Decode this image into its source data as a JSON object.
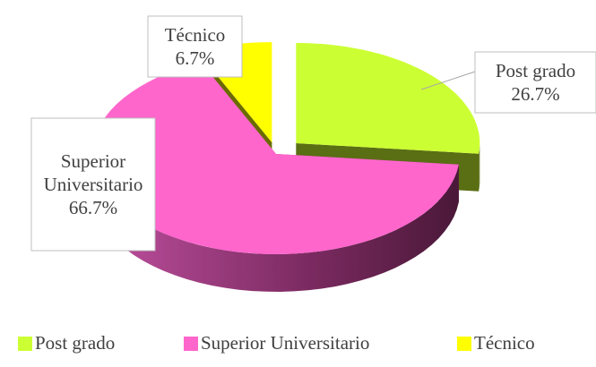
{
  "chart_data": {
    "type": "pie",
    "categories": [
      "Post grado",
      "Superior Universitario",
      "Técnico"
    ],
    "values": [
      26.7,
      66.7,
      6.7
    ],
    "value_labels": [
      "26.7%",
      "66.7%",
      "6.7%"
    ],
    "colors": [
      "#ccff33",
      "#ff66cc",
      "#ffff00"
    ],
    "legend": "bottom"
  }
}
